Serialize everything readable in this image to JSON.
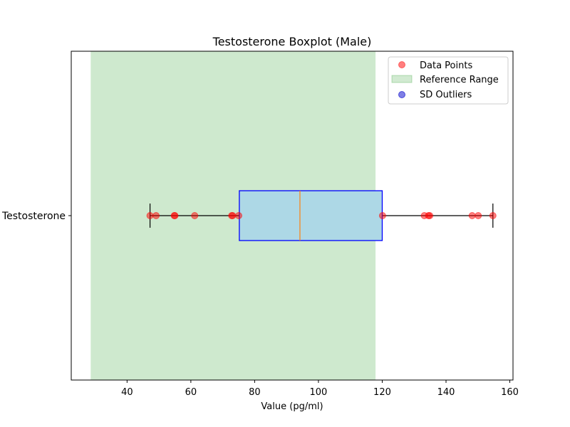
{
  "chart_data": {
    "type": "boxplot",
    "title": "Testosterone Boxplot (Male)",
    "xlabel": "Value (pg/ml)",
    "ylabel": "",
    "category": "Testosterone",
    "orientation": "horizontal",
    "xlim": [
      22.5,
      161
    ],
    "x_ticks": [
      40,
      60,
      80,
      100,
      120,
      140,
      160
    ],
    "grid": false,
    "legend_position": "top-right",
    "box": {
      "whisker_low": 47.2,
      "q1": 75.2,
      "median": 94.2,
      "q3": 120.0,
      "whisker_high": 154.7,
      "fill_color": "#add8e6",
      "edge_color": "#0000ff",
      "median_color": "#ff7f0e"
    },
    "reference_range": {
      "low": 28.6,
      "high": 117.9,
      "color": "#2ca02c"
    },
    "data_points": [
      47.2,
      49.1,
      54.8,
      55.0,
      61.2,
      72.8,
      73.1,
      75.0,
      120.1,
      133.2,
      134.5,
      134.9,
      148.2,
      150.1,
      154.7
    ],
    "data_point_color": "#ff0000",
    "sd_outliers": [],
    "sd_outlier_color": "#0000cc",
    "legend": [
      {
        "label": "Data Points",
        "marker": "circle",
        "color": "#ff0000"
      },
      {
        "label": "Reference Range",
        "marker": "patch",
        "color": "#2ca02c"
      },
      {
        "label": "SD Outliers",
        "marker": "circle",
        "color": "#0000cc"
      }
    ]
  }
}
